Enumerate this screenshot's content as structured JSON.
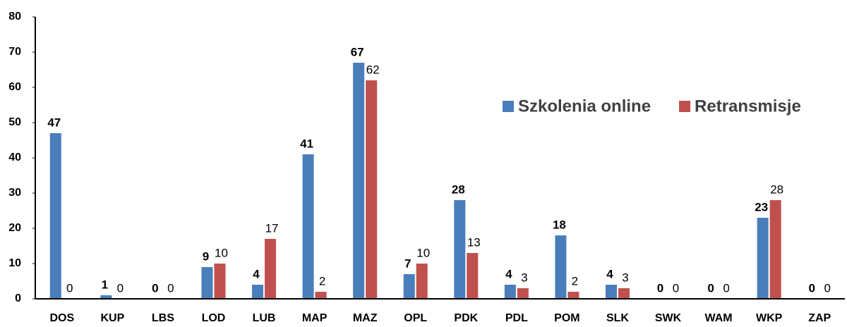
{
  "chart_data": {
    "type": "bar",
    "categories": [
      "DOS",
      "KUP",
      "LBS",
      "LOD",
      "LUB",
      "MAP",
      "MAZ",
      "OPL",
      "PDK",
      "PDL",
      "POM",
      "SLK",
      "SWK",
      "WAM",
      "WKP",
      "ZAP"
    ],
    "series": [
      {
        "name": "Szkolenia online",
        "color": "#4a7ebb",
        "values": [
          47,
          1,
          0,
          9,
          4,
          41,
          67,
          7,
          28,
          4,
          18,
          4,
          0,
          0,
          23,
          0
        ]
      },
      {
        "name": "Retransmisje",
        "color": "#c0504d",
        "values": [
          0,
          0,
          0,
          10,
          17,
          2,
          62,
          10,
          13,
          3,
          2,
          3,
          0,
          0,
          28,
          0
        ]
      }
    ],
    "ylim": [
      0,
      80
    ],
    "yticks": [
      0,
      10,
      20,
      30,
      40,
      50,
      60,
      70,
      80
    ]
  }
}
